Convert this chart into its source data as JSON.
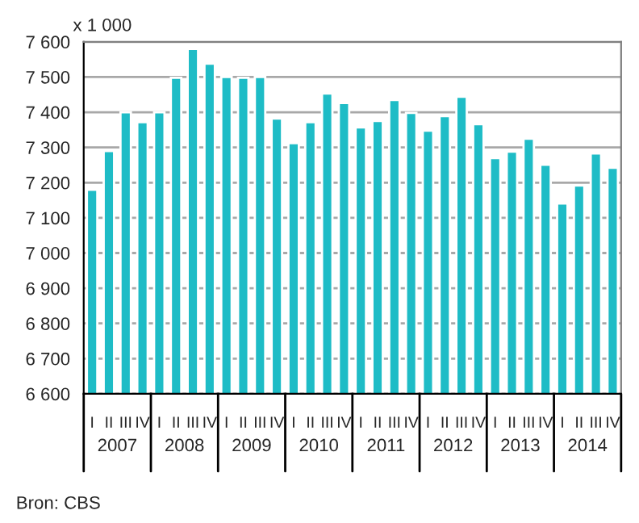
{
  "chart_data": {
    "type": "bar",
    "ylabel": "x 1 000",
    "categories": [
      "I",
      "II",
      "III",
      "IV",
      "I",
      "II",
      "III",
      "IV",
      "I",
      "II",
      "III",
      "IV",
      "I",
      "II",
      "III",
      "IV",
      "I",
      "II",
      "III",
      "IV",
      "I",
      "II",
      "III",
      "IV",
      "I",
      "II",
      "III",
      "IV",
      "I",
      "II",
      "III",
      "IV"
    ],
    "values": [
      7180,
      7290,
      7400,
      7372,
      7400,
      7498,
      7580,
      7538,
      7500,
      7498,
      7500,
      7382,
      7312,
      7372,
      7453,
      7426,
      7357,
      7375,
      7435,
      7398,
      7348,
      7389,
      7444,
      7366,
      7270,
      7288,
      7325,
      7251,
      7141,
      7192,
      7283,
      7242
    ],
    "color": "#1ebcc6",
    "ylim": [
      6600,
      7600
    ],
    "yticks": [
      {
        "value": 6600,
        "label": "6 600"
      },
      {
        "value": 6700,
        "label": "6 700"
      },
      {
        "value": 6800,
        "label": "6 800"
      },
      {
        "value": 6900,
        "label": "6 900"
      },
      {
        "value": 7000,
        "label": "7 000"
      },
      {
        "value": 7100,
        "label": "7 100"
      },
      {
        "value": 7200,
        "label": "7 200"
      },
      {
        "value": 7300,
        "label": "7 300"
      },
      {
        "value": 7400,
        "label": "7 400"
      },
      {
        "value": 7500,
        "label": "7 500"
      },
      {
        "value": 7600,
        "label": "7 600"
      }
    ],
    "grid": "y",
    "annotations": [
      "2007",
      "2008",
      "2009",
      "2010",
      "2011",
      "2012",
      "2013",
      "2014",
      "Bron: CBS"
    ]
  }
}
